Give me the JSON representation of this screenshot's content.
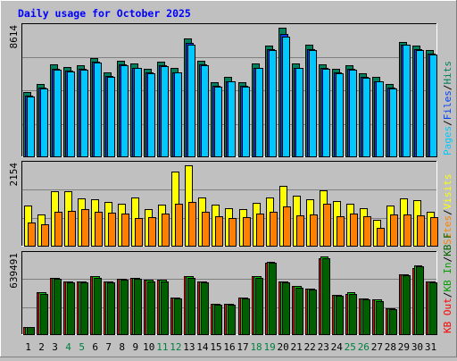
{
  "chart_data": {
    "type": "bar",
    "title": "Daily usage for October 2025",
    "colors": {
      "background": "#C0C0C0",
      "plot_bg": "#C0C0C0",
      "title": "#0000FF",
      "hits": "#00805C",
      "files": "#0040FF",
      "pages": "#00C8FF",
      "visits": "#FFFF00",
      "sites": "#FF8000",
      "kb_in": "#00C800",
      "kb_out": "#006000",
      "kb_f": "#FF0000",
      "text": "#000000",
      "weekend": "#008040"
    },
    "days": [
      "1",
      "2",
      "3",
      "4",
      "5",
      "6",
      "7",
      "8",
      "9",
      "10",
      "11",
      "12",
      "13",
      "14",
      "15",
      "16",
      "17",
      "18",
      "19",
      "20",
      "21",
      "22",
      "23",
      "24",
      "25",
      "26",
      "27",
      "28",
      "29",
      "30",
      "31"
    ],
    "weekend_days": [
      "4",
      "5",
      "11",
      "12",
      "18",
      "19",
      "25",
      "26"
    ],
    "panels": [
      {
        "id": "hits-files-pages",
        "max_label": "8614",
        "ymax": 8614,
        "legend": [
          "Hits",
          "/",
          "Files",
          "/",
          "Pages"
        ],
        "series": [
          {
            "name": "Hits",
            "values": [
              4300,
              4850,
              6150,
              6000,
              6100,
              6600,
              5650,
              6400,
              6200,
              5850,
              6350,
              5900,
              7900,
              6400,
              4950,
              5300,
              4950,
              6200,
              7400,
              8614,
              6200,
              7450,
              6150,
              5850,
              6100,
              5550,
              5300,
              4850,
              7650,
              7400,
              7100
            ]
          },
          {
            "name": "Files",
            "values": [
              4050,
              4600,
              5850,
              5750,
              5850,
              6350,
              5400,
              6150,
              5950,
              5600,
              6100,
              5650,
              7600,
              6150,
              4700,
              5050,
              4700,
              5950,
              7150,
              8200,
              5950,
              7200,
              5900,
              5600,
              5850,
              5300,
              5050,
              4600,
              7500,
              7150,
              6850
            ]
          },
          {
            "name": "Pages",
            "values": [
              4000,
              4550,
              5800,
              5700,
              5800,
              6300,
              5350,
              6100,
              5900,
              5550,
              6050,
              5600,
              7500,
              6100,
              4650,
              5000,
              4650,
              5900,
              7100,
              8000,
              5900,
              7100,
              5850,
              5550,
              5800,
              5250,
              5000,
              4550,
              7450,
              7100,
              6800
            ]
          }
        ]
      },
      {
        "id": "visits-sites",
        "max_label": "2154",
        "ymax": 2154,
        "legend": [
          "Visits",
          "/",
          "Sites"
        ],
        "series": [
          {
            "name": "Visits",
            "values": [
              1070,
              840,
              1450,
              1450,
              1280,
              1250,
              1170,
              1120,
              1290,
              970,
              1090,
              1980,
              2154,
              1300,
              1090,
              1000,
              970,
              1150,
              1290,
              1600,
              1350,
              1250,
              1480,
              1200,
              1120,
              1000,
              700,
              1070,
              1260,
              1210,
              920
            ]
          },
          {
            "name": "Sites",
            "values": [
              620,
              580,
              920,
              930,
              980,
              920,
              880,
              850,
              750,
              760,
              870,
              1130,
              1180,
              920,
              780,
              740,
              760,
              850,
              920,
              1060,
              820,
              830,
              1130,
              800,
              850,
              780,
              470,
              830,
              830,
              820,
              770
            ]
          }
        ]
      },
      {
        "id": "kb",
        "max_label": "639491",
        "ymax": 639491,
        "legend": [
          "KB F",
          "/",
          "KB In",
          "/",
          "KB Out"
        ],
        "series": [
          {
            "name": "KB F",
            "values": [
              60000,
              340000,
              460000,
              430000,
              430000,
              470000,
              430000,
              450000,
              460000,
              440000,
              440000,
              300000,
              470000,
              430000,
              250000,
              250000,
              300000,
              470000,
              580000,
              430000,
              390000,
              370000,
              620000,
              320000,
              330000,
              290000,
              280000,
              210000,
              490000,
              540000,
              430000
            ]
          },
          {
            "name": "KB In",
            "values": [
              60000,
              340000,
              460000,
              430000,
              430000,
              470000,
              430000,
              450000,
              460000,
              440000,
              440000,
              300000,
              470000,
              430000,
              250000,
              250000,
              300000,
              470000,
              590000,
              430000,
              390000,
              370000,
              630000,
              320000,
              340000,
              290000,
              280000,
              210000,
              490000,
              560000,
              430000
            ]
          },
          {
            "name": "KB Out",
            "values": [
              55000,
              330000,
              450000,
              420000,
              420000,
              460000,
              420000,
              440000,
              450000,
              430000,
              430000,
              290000,
              460000,
              420000,
              240000,
              240000,
              290000,
              460000,
              580000,
              420000,
              380000,
              360000,
              620000,
              310000,
              330000,
              280000,
              270000,
              200000,
              480000,
              550000,
              420000
            ]
          }
        ]
      }
    ]
  }
}
